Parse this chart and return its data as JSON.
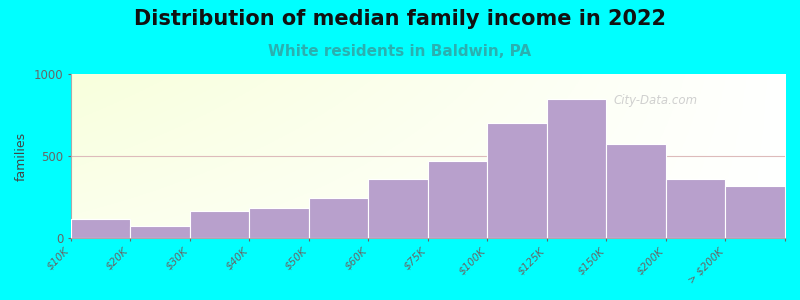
{
  "title": "Distribution of median family income in 2022",
  "subtitle": "White residents in Baldwin, PA",
  "ylabel": "families",
  "background_color": "#00FFFF",
  "bar_color": "#b8a0cc",
  "bar_edge_color": "#ffffff",
  "bin_labels": [
    "$10K",
    "$20K",
    "$30K",
    "$40K",
    "$50K",
    "$60K",
    "$75K",
    "$100K",
    "$125K",
    "$150K",
    "$200K",
    "> $200K"
  ],
  "values": [
    120,
    75,
    165,
    185,
    245,
    360,
    470,
    700,
    850,
    575,
    360,
    320
  ],
  "ylim": [
    0,
    1000
  ],
  "yticks": [
    0,
    500,
    1000
  ],
  "title_fontsize": 15,
  "subtitle_fontsize": 11,
  "subtitle_color": "#2ab0b0",
  "watermark": "City-Data.com",
  "watermark_color": "#c8c8c8",
  "grid_color": "#ddbbbb",
  "spine_color": "#aaaaaa"
}
